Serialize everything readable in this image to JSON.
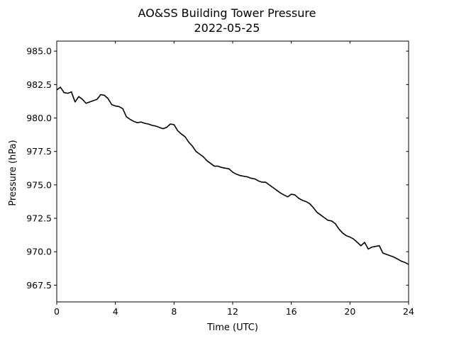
{
  "chart_data": {
    "type": "line",
    "title": "AO&SS Building Tower Pressure",
    "subtitle": "2022-05-25",
    "xlabel": "Time (UTC)",
    "ylabel": "Pressure (hPa)",
    "xlim": [
      0,
      24
    ],
    "ylim": [
      966.25,
      985.75
    ],
    "xticks": [
      0,
      4,
      8,
      12,
      16,
      20,
      24
    ],
    "xtick_labels": [
      "0",
      "4",
      "8",
      "12",
      "16",
      "20",
      "24"
    ],
    "yticks": [
      967.5,
      970.0,
      972.5,
      975.0,
      977.5,
      980.0,
      982.5,
      985.0
    ],
    "ytick_labels": [
      "967.5",
      "970.0",
      "972.5",
      "975.0",
      "977.5",
      "980.0",
      "982.5",
      "985.0"
    ],
    "grid": false,
    "series": [
      {
        "color": "#000000",
        "x": [
          0.0,
          0.25,
          0.5,
          0.75,
          1.0,
          1.25,
          1.5,
          1.75,
          2.0,
          2.25,
          2.5,
          2.75,
          3.0,
          3.25,
          3.5,
          3.75,
          4.0,
          4.25,
          4.5,
          4.75,
          5.0,
          5.25,
          5.5,
          5.75,
          6.0,
          6.25,
          6.5,
          6.75,
          7.0,
          7.25,
          7.5,
          7.75,
          8.0,
          8.25,
          8.5,
          8.75,
          9.0,
          9.25,
          9.5,
          9.75,
          10.0,
          10.25,
          10.5,
          10.75,
          11.0,
          11.25,
          11.5,
          11.75,
          12.0,
          12.25,
          12.5,
          12.75,
          13.0,
          13.25,
          13.5,
          13.75,
          14.0,
          14.25,
          14.5,
          14.75,
          15.0,
          15.25,
          15.5,
          15.75,
          16.0,
          16.25,
          16.5,
          16.75,
          17.0,
          17.25,
          17.5,
          17.75,
          18.0,
          18.25,
          18.5,
          18.75,
          19.0,
          19.25,
          19.5,
          19.75,
          20.0,
          20.25,
          20.5,
          20.75,
          21.0,
          21.25,
          21.5,
          21.75,
          22.0,
          22.25,
          22.5,
          22.75,
          23.0,
          23.25,
          23.5,
          23.75,
          24.0
        ],
        "y": [
          982.1,
          982.3,
          981.9,
          981.85,
          981.95,
          981.2,
          981.6,
          981.4,
          981.1,
          981.2,
          981.3,
          981.4,
          981.75,
          981.7,
          981.45,
          981.0,
          980.9,
          980.85,
          980.7,
          980.1,
          979.9,
          979.75,
          979.65,
          979.7,
          979.6,
          979.55,
          979.45,
          979.4,
          979.3,
          979.2,
          979.3,
          979.55,
          979.5,
          979.05,
          978.8,
          978.6,
          978.2,
          977.9,
          977.5,
          977.3,
          977.1,
          976.8,
          976.6,
          976.4,
          976.4,
          976.3,
          976.25,
          976.2,
          975.95,
          975.8,
          975.7,
          975.65,
          975.6,
          975.5,
          975.45,
          975.3,
          975.2,
          975.2,
          975.0,
          974.8,
          974.6,
          974.4,
          974.25,
          974.1,
          974.3,
          974.25,
          974.0,
          973.85,
          973.75,
          973.6,
          973.3,
          972.95,
          972.75,
          972.55,
          972.35,
          972.3,
          972.1,
          971.7,
          971.4,
          971.2,
          971.1,
          970.95,
          970.7,
          970.45,
          970.7,
          970.2,
          970.35,
          970.4,
          970.45,
          969.9,
          969.8,
          969.7,
          969.6,
          969.45,
          969.3,
          969.2,
          969.05
        ]
      }
    ]
  }
}
